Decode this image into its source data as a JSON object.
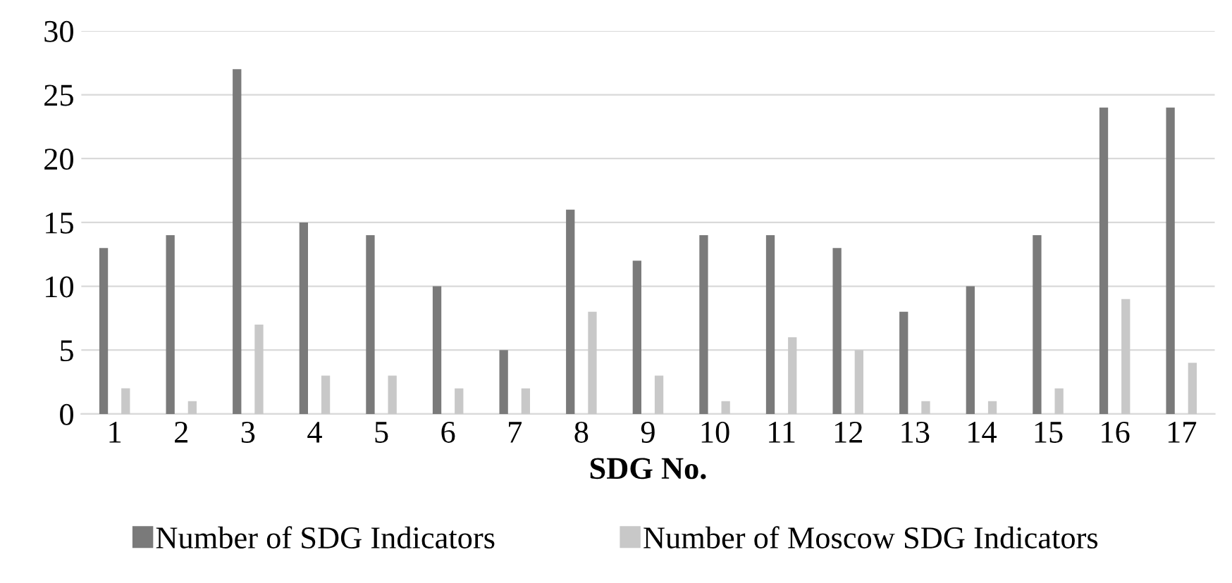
{
  "chart_data": {
    "type": "bar",
    "xlabel": "SDG No.",
    "categories": [
      "1",
      "2",
      "3",
      "4",
      "5",
      "6",
      "7",
      "8",
      "9",
      "10",
      "11",
      "12",
      "13",
      "14",
      "15",
      "16",
      "17"
    ],
    "series": [
      {
        "name": "Number of SDG Indicators",
        "color": "#7a7a7a",
        "values": [
          13,
          14,
          27,
          15,
          14,
          10,
          5,
          16,
          12,
          14,
          14,
          13,
          8,
          10,
          14,
          24,
          24
        ]
      },
      {
        "name": "Number of Moscow SDG Indicators",
        "color": "#c8c8c8",
        "values": [
          2,
          1,
          7,
          3,
          3,
          2,
          2,
          8,
          3,
          1,
          6,
          5,
          1,
          1,
          2,
          9,
          4
        ]
      }
    ],
    "ylim": [
      0,
      30
    ],
    "yticks": [
      0,
      5,
      10,
      15,
      20,
      25,
      30
    ],
    "grid": "y",
    "legend": "bottom"
  }
}
